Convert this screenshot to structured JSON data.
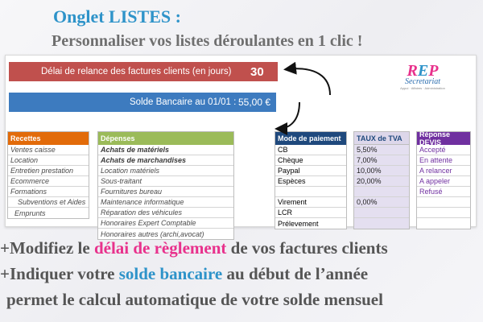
{
  "header": {
    "title": "Onglet LISTES :",
    "subtitle": "Personnaliser vos listes déroulantes en 1 clic !"
  },
  "settings": {
    "relance_label": "Délai de relance des factures clients (en jours)",
    "relance_value": "30",
    "solde_label": "Solde Bancaire au 01/01 :",
    "solde_value": "55,00 €"
  },
  "logo": {
    "main": "R",
    "accent": "E",
    "main2": "P",
    "sub": "Secretariat",
    "tiny": "Appui · Affaires · Administration"
  },
  "recettes": {
    "header": "Recettes",
    "items": [
      "Ventes caisse",
      "Location",
      "Entretien prestation",
      "Ecommerce",
      "Formations",
      "Subventions et Aides",
      "Emprunts"
    ]
  },
  "depenses": {
    "header": "Dépenses",
    "items": [
      "Achats de matériels",
      "Achats de marchandises",
      "Location matériels",
      "Sous-traitant",
      "Fournitures bureau",
      "Maintenance informatique",
      "Réparation des véhicules",
      "Honoraires Expert Comptable",
      "Honoraires autres (archi,avocat)"
    ]
  },
  "mode": {
    "header": "Mode de paiement",
    "items": [
      "CB",
      "Chèque",
      "Paypal",
      "Espèces",
      "",
      "Virement",
      "LCR",
      "Prélevement"
    ]
  },
  "tva": {
    "header": "TAUX de TVA",
    "items": [
      "5,50%",
      "7,00%",
      "10,00%",
      "20,00%",
      "",
      "0,00%",
      "",
      ""
    ]
  },
  "devis": {
    "header": "Réponse DEVIS",
    "items": [
      "Accepté",
      "En attente",
      "A relancer",
      "A appeler",
      "Refusé",
      "",
      "",
      ""
    ]
  },
  "callouts": {
    "line1_a": "+Modifiez le ",
    "line1_b": "délai de règlement",
    "line1_c": " de vos factures clients",
    "line2_a": "+Indiquer votre ",
    "line2_b": "solde bancaire",
    "line2_c": " au début de l’année",
    "line3": "permet le calcul automatique de votre solde mensuel"
  },
  "colors": {
    "title_blue": "#2e93c9",
    "relance_red": "#c0504d",
    "solde_blue": "#3d7bbf",
    "recettes_orange": "#e26b0a",
    "depenses_green": "#9bbb59",
    "mode_navy": "#1f497d",
    "tva_lavender": "#ddd7ea",
    "devis_purple": "#7030a0",
    "highlight_pink": "#e8318c"
  }
}
